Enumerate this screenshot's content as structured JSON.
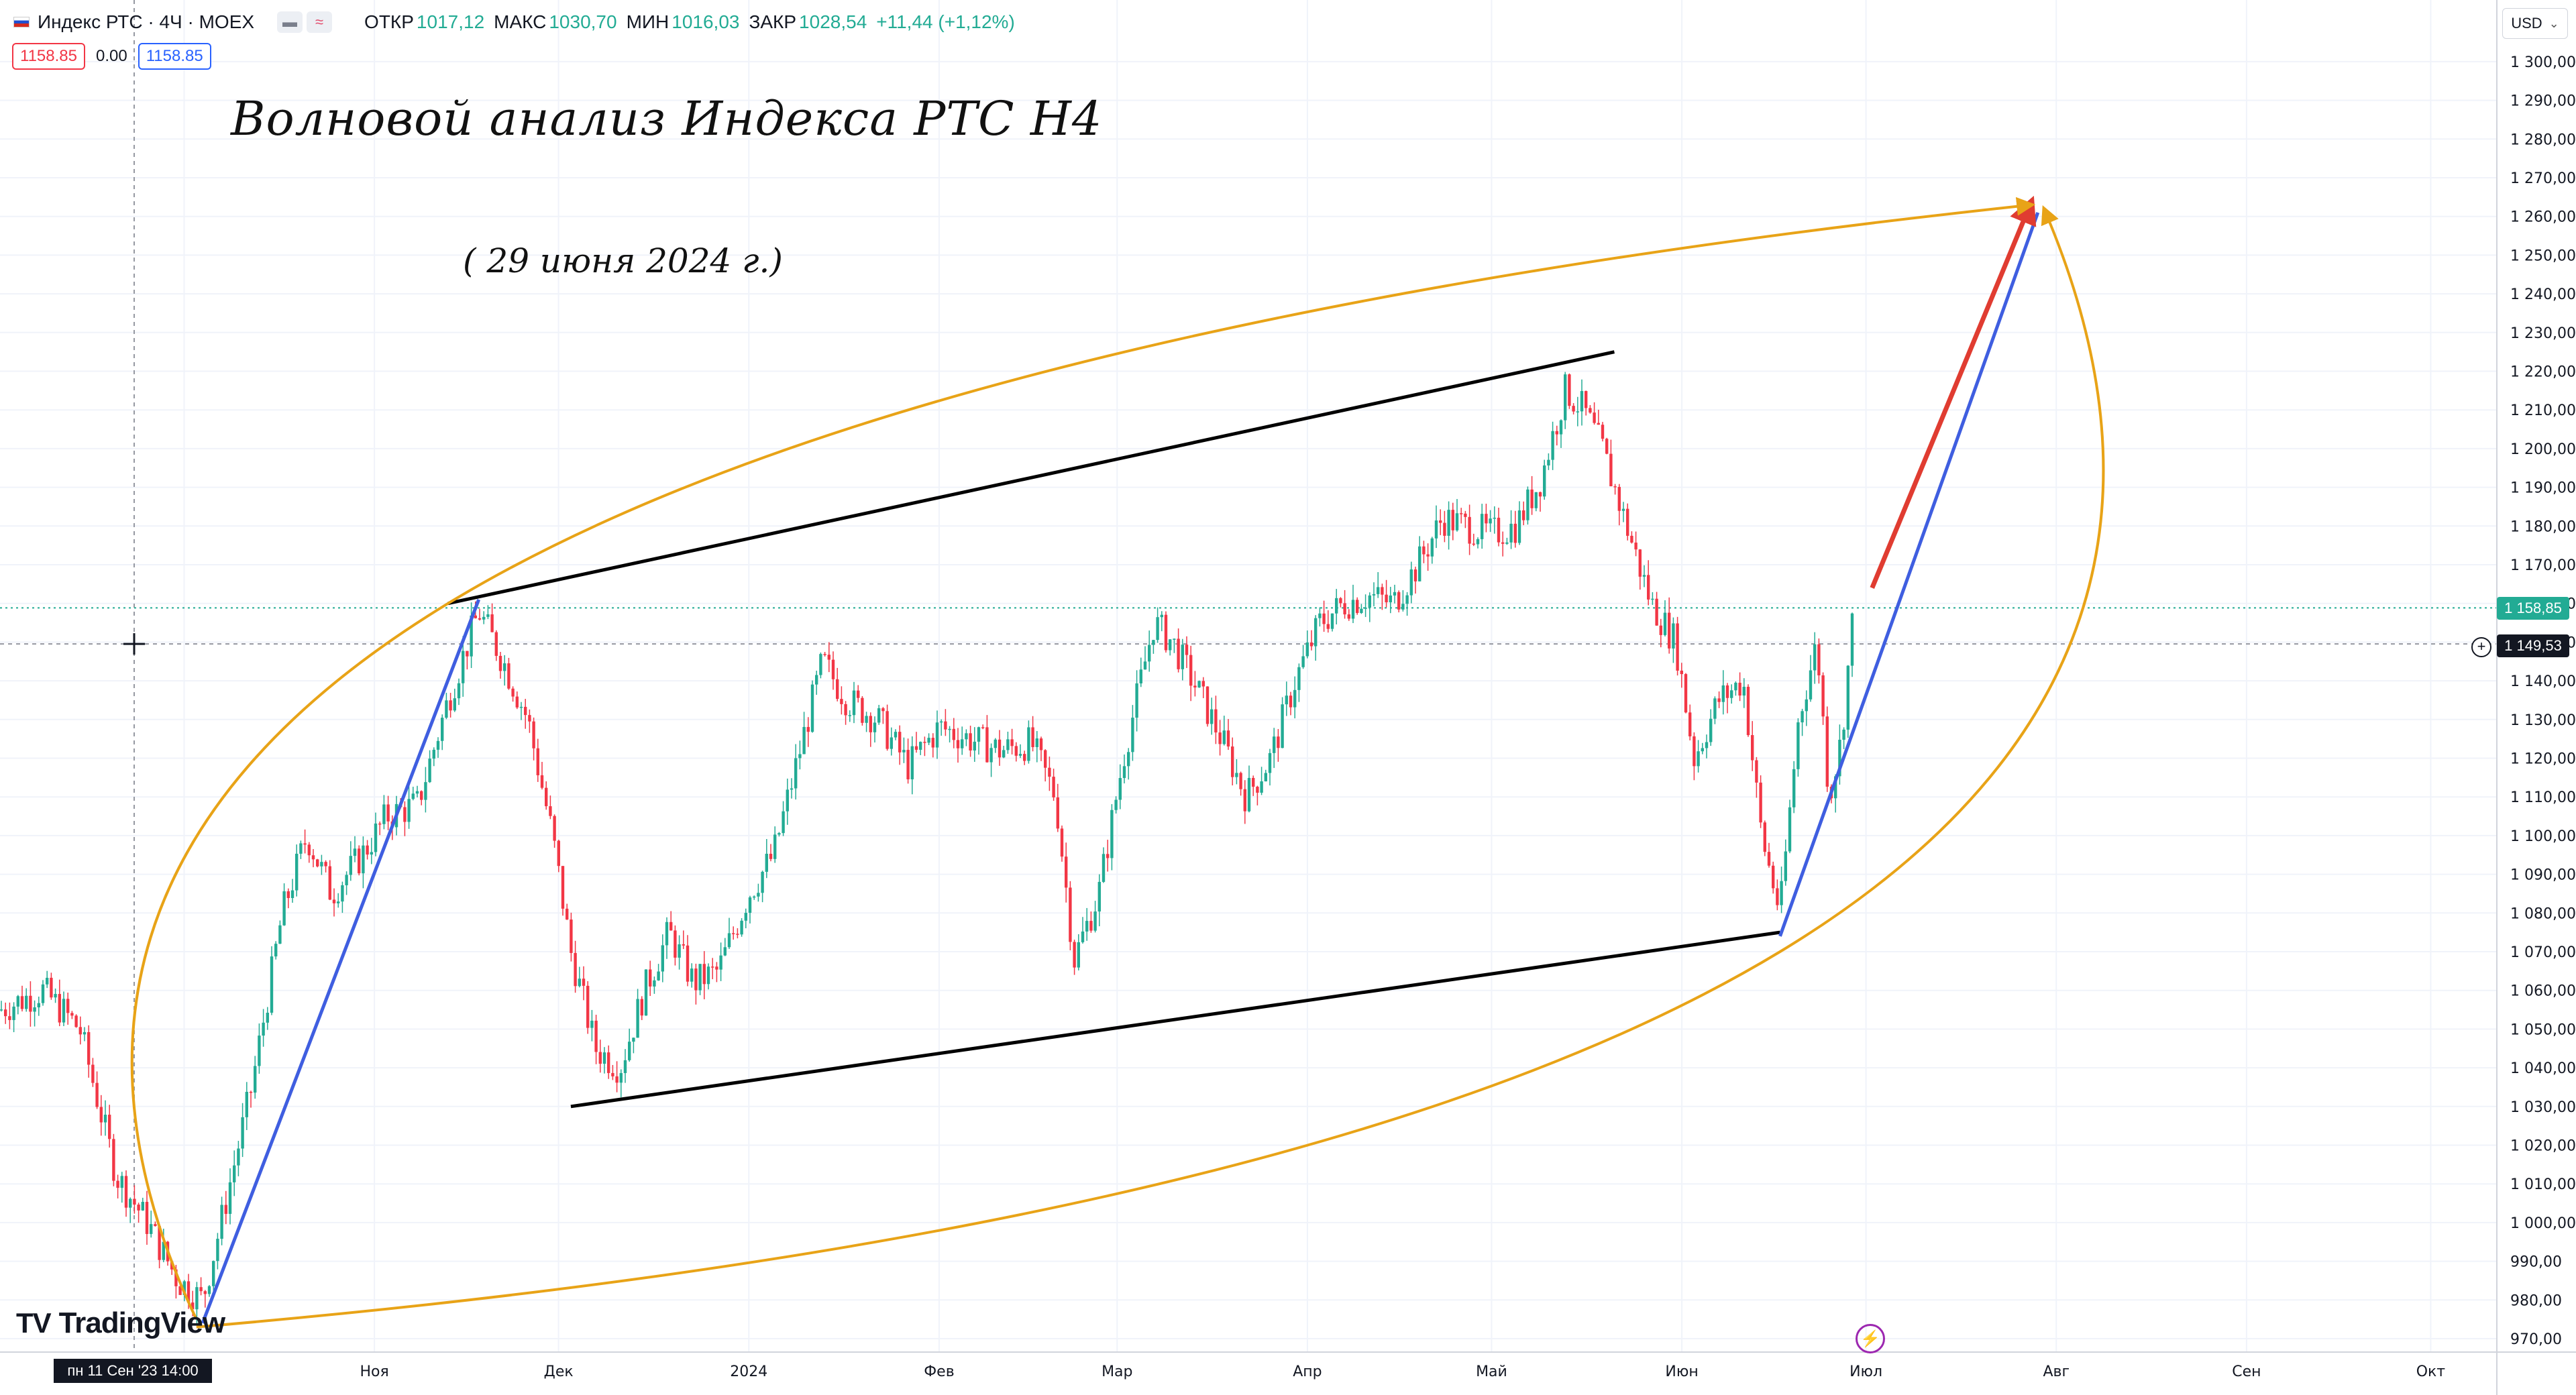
{
  "header": {
    "symbol": "Индекс РТС · 4Ч · MOEX",
    "ohlc": [
      {
        "label": "ОТКР",
        "value": "1017,12"
      },
      {
        "label": "МАКС",
        "value": "1030,70"
      },
      {
        "label": "МИН",
        "value": "1016,03"
      },
      {
        "label": "ЗАКР",
        "value": "1028,54"
      }
    ],
    "change": "+11,44 (+1,12%)",
    "sell_price": "1158.85",
    "spread": "0.00",
    "buy_price": "1158.85"
  },
  "currency": "USD",
  "annotations": {
    "title": "Волновой анализ Индекса РТС Н4",
    "date": "( 29 июня 2024 г.)"
  },
  "price_tags": {
    "last": "1 158,85",
    "crosshair": "1 149,53"
  },
  "crosshair_time": "пн 11 Сен '23   14:00",
  "logo": "TradingView",
  "chart_data": {
    "type": "candlestick",
    "timeframe": "4Ч",
    "ylim": [
      970,
      1305
    ],
    "y_ticks": [
      "970,00",
      "980,00",
      "990,00",
      "1 000,00",
      "1 010,00",
      "1 020,00",
      "1 030,00",
      "1 040,00",
      "1 050,00",
      "1 060,00",
      "1 070,00",
      "1 080,00",
      "1 090,00",
      "1 100,00",
      "1 110,00",
      "1 120,00",
      "1 130,00",
      "1 140,00",
      "1 150,00",
      "1 160,00",
      "1 170,00",
      "1 180,00",
      "1 190,00",
      "1 200,00",
      "1 210,00",
      "1 220,00",
      "1 230,00",
      "1 240,00",
      "1 250,00",
      "1 260,00",
      "1 270,00",
      "1 280,00",
      "1 290,00",
      "1 300,00"
    ],
    "x_ticks": [
      "Окт",
      "Ноя",
      "Дек",
      "2024",
      "Фев",
      "Мар",
      "Апр",
      "Май",
      "Июн",
      "Июл",
      "Авг",
      "Сен",
      "Окт"
    ],
    "colors": {
      "up": "#22ab94",
      "down": "#f23645",
      "orange": "#e8a317",
      "blue": "#3f5ee0",
      "black": "#000000",
      "red": "#e03c31"
    },
    "price_path": [
      [
        "2023-09-01",
        1055
      ],
      [
        "2023-09-08",
        1060
      ],
      [
        "2023-09-14",
        1050
      ],
      [
        "2023-09-20",
        1012
      ],
      [
        "2023-09-25",
        1000
      ],
      [
        "2023-09-30",
        985
      ],
      [
        "2023-10-04",
        980
      ],
      [
        "2023-10-07",
        1000
      ],
      [
        "2023-10-12",
        1035
      ],
      [
        "2023-10-17",
        1080
      ],
      [
        "2023-10-21",
        1100
      ],
      [
        "2023-10-25",
        1085
      ],
      [
        "2023-10-30",
        1095
      ],
      [
        "2023-11-03",
        1105
      ],
      [
        "2023-11-08",
        1108
      ],
      [
        "2023-11-13",
        1135
      ],
      [
        "2023-11-18",
        1158
      ],
      [
        "2023-11-22",
        1145
      ],
      [
        "2023-11-26",
        1130
      ],
      [
        "2023-11-30",
        1100
      ],
      [
        "2023-12-03",
        1070
      ],
      [
        "2023-12-07",
        1045
      ],
      [
        "2023-12-11",
        1040
      ],
      [
        "2023-12-15",
        1060
      ],
      [
        "2023-12-19",
        1075
      ],
      [
        "2023-12-23",
        1062
      ],
      [
        "2023-12-27",
        1065
      ],
      [
        "2024-01-01",
        1085
      ],
      [
        "2024-01-05",
        1095
      ],
      [
        "2024-01-09",
        1120
      ],
      [
        "2024-01-13",
        1145
      ],
      [
        "2024-01-17",
        1135
      ],
      [
        "2024-01-22",
        1130
      ],
      [
        "2024-01-27",
        1118
      ],
      [
        "2024-02-01",
        1128
      ],
      [
        "2024-02-06",
        1125
      ],
      [
        "2024-02-11",
        1122
      ],
      [
        "2024-02-16",
        1124
      ],
      [
        "2024-02-20",
        1110
      ],
      [
        "2024-02-23",
        1068
      ],
      [
        "2024-02-27",
        1085
      ],
      [
        "2024-03-02",
        1120
      ],
      [
        "2024-03-07",
        1155
      ],
      [
        "2024-03-10",
        1150
      ],
      [
        "2024-03-14",
        1138
      ],
      [
        "2024-03-18",
        1125
      ],
      [
        "2024-03-22",
        1110
      ],
      [
        "2024-03-26",
        1120
      ],
      [
        "2024-03-30",
        1140
      ],
      [
        "2024-04-03",
        1155
      ],
      [
        "2024-04-07",
        1160
      ],
      [
        "2024-04-11",
        1162
      ],
      [
        "2024-04-15",
        1160
      ],
      [
        "2024-04-19",
        1170
      ],
      [
        "2024-04-23",
        1182
      ],
      [
        "2024-04-27",
        1180
      ],
      [
        "2024-05-01",
        1178
      ],
      [
        "2024-05-05",
        1180
      ],
      [
        "2024-05-09",
        1192
      ],
      [
        "2024-05-13",
        1215
      ],
      [
        "2024-05-16",
        1210
      ],
      [
        "2024-05-19",
        1200
      ],
      [
        "2024-05-23",
        1180
      ],
      [
        "2024-05-27",
        1160
      ],
      [
        "2024-05-31",
        1150
      ],
      [
        "2024-06-03",
        1120
      ],
      [
        "2024-06-07",
        1135
      ],
      [
        "2024-06-11",
        1140
      ],
      [
        "2024-06-14",
        1100
      ],
      [
        "2024-06-17",
        1080
      ],
      [
        "2024-06-20",
        1130
      ],
      [
        "2024-06-23",
        1150
      ],
      [
        "2024-06-25",
        1110
      ],
      [
        "2024-06-27",
        1125
      ],
      [
        "2024-06-29",
        1158.85
      ]
    ],
    "drawings": [
      {
        "type": "trend-line",
        "color": "black",
        "points": [
          [
            "2023-11-13",
            1160
          ],
          [
            "2024-05-21",
            1225
          ]
        ]
      },
      {
        "type": "trend-line",
        "color": "black",
        "points": [
          [
            "2023-12-03",
            1030
          ],
          [
            "2024-06-17",
            1075
          ]
        ]
      },
      {
        "type": "trend-line",
        "color": "blue",
        "points": [
          [
            "2023-10-04",
            974
          ],
          [
            "2023-11-18",
            1161
          ]
        ]
      },
      {
        "type": "trend-line",
        "color": "blue",
        "points": [
          [
            "2024-06-17",
            1074
          ],
          [
            "2024-07-29",
            1261
          ]
        ]
      },
      {
        "type": "arrow",
        "color": "red",
        "points": [
          [
            "2024-07-02",
            1164
          ],
          [
            "2024-07-28",
            1264
          ]
        ]
      },
      {
        "type": "arc",
        "color": "orange",
        "points": [
          [
            "2023-10-03",
            975
          ],
          [
            "2023-11-13",
            1160
          ],
          [
            "2024-07-28",
            1263
          ]
        ]
      },
      {
        "type": "arc",
        "color": "orange",
        "points": [
          [
            "2023-10-03",
            973
          ],
          [
            "2024-06-17",
            1070
          ],
          [
            "2024-07-30",
            1262
          ]
        ]
      }
    ]
  }
}
